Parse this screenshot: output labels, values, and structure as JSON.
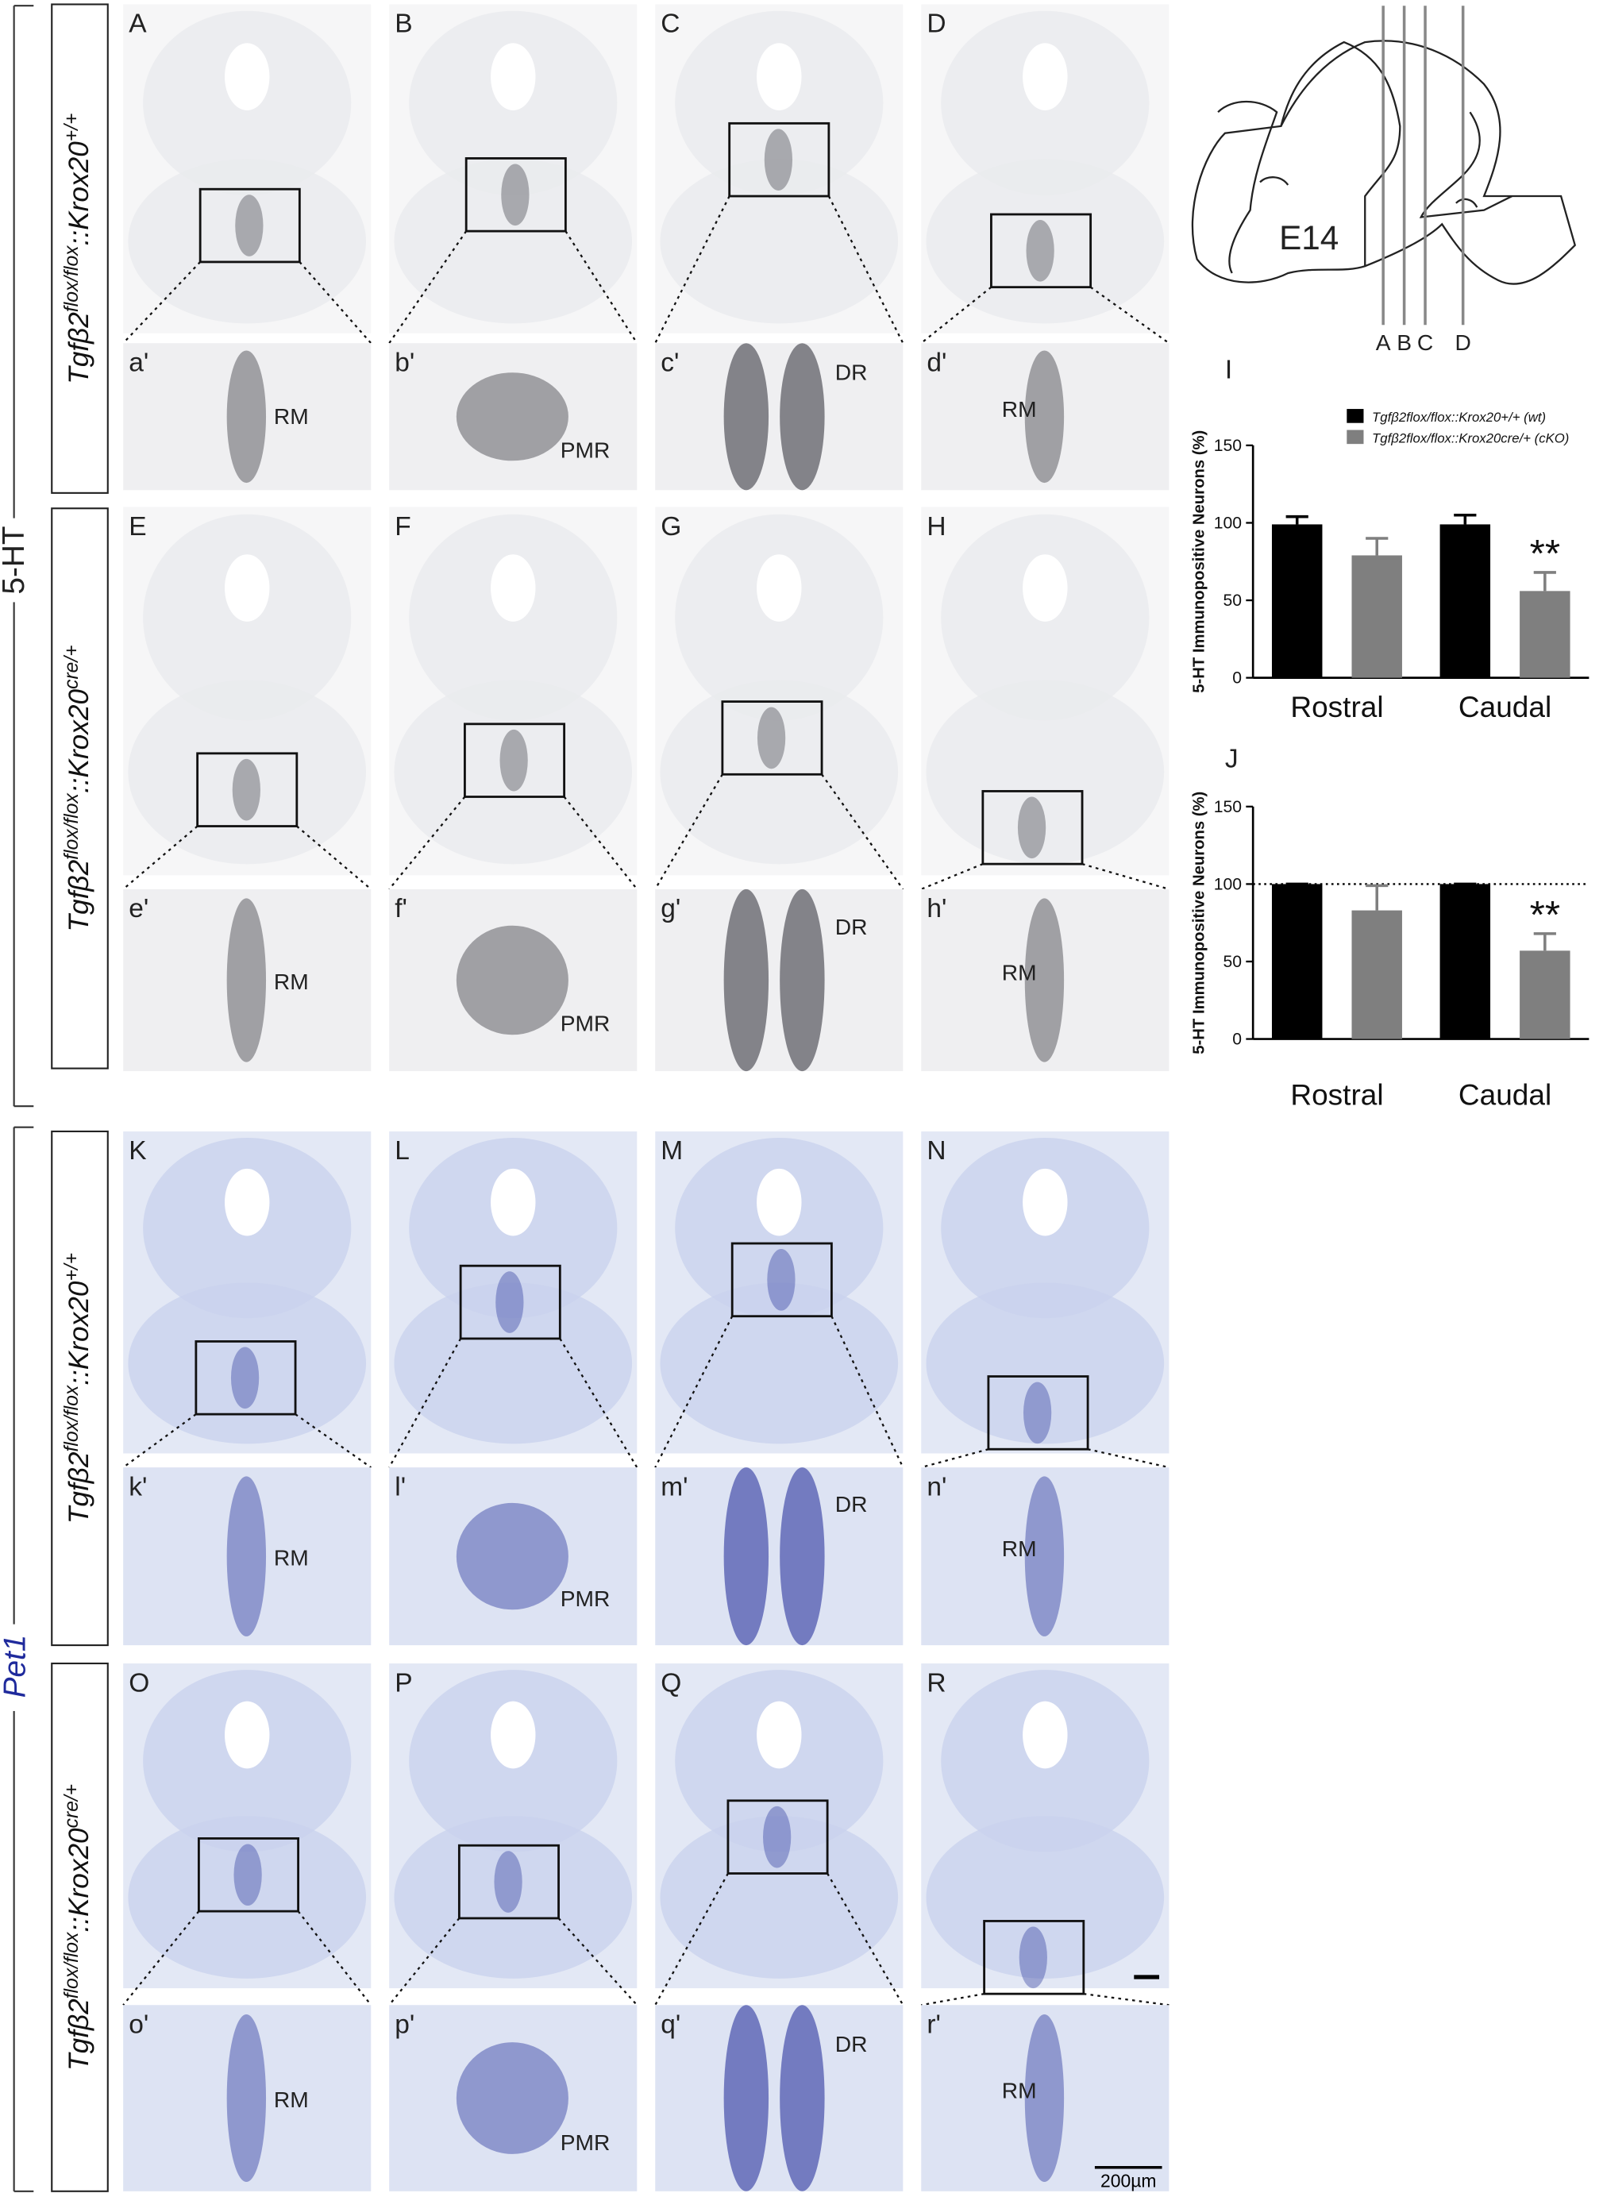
{
  "groups": [
    {
      "label": "5-HT"
    },
    {
      "label": "Pet1"
    }
  ],
  "rows": [
    {
      "label": [
        {
          "text": "Tgfβ2"
        },
        {
          "text": "flox/flox",
          "sup": true
        },
        {
          "text": "::Krox20"
        },
        {
          "text": "+/+",
          "sup": true
        }
      ]
    },
    {
      "label": [
        {
          "text": "Tgfβ2"
        },
        {
          "text": "flox/flox",
          "sup": true
        },
        {
          "text": "::Krox20"
        },
        {
          "text": "cre/+",
          "sup": true
        }
      ]
    },
    {
      "label": [
        {
          "text": "Tgfβ2"
        },
        {
          "text": "flox/flox",
          "sup": true
        },
        {
          "text": "::Krox20"
        },
        {
          "text": "+/+",
          "sup": true
        }
      ]
    },
    {
      "label": [
        {
          "text": "Tgfβ2"
        },
        {
          "text": "flox/flox",
          "sup": true
        },
        {
          "text": "::Krox20"
        },
        {
          "text": "cre/+",
          "sup": true
        }
      ]
    }
  ],
  "panels": [
    {
      "label": "A",
      "zoom_label": "a'",
      "region": "RM"
    },
    {
      "label": "B",
      "zoom_label": "b'",
      "region": "PMR"
    },
    {
      "label": "C",
      "zoom_label": "c'",
      "region": "DR"
    },
    {
      "label": "D",
      "zoom_label": "d'",
      "region": "RM"
    },
    {
      "label": "E",
      "zoom_label": "e'",
      "region": "RM"
    },
    {
      "label": "F",
      "zoom_label": "f'",
      "region": "PMR"
    },
    {
      "label": "G",
      "zoom_label": "g'",
      "region": "DR"
    },
    {
      "label": "H",
      "zoom_label": "h'",
      "region": "RM"
    },
    {
      "label": "K",
      "zoom_label": "k'",
      "region": "RM"
    },
    {
      "label": "L",
      "zoom_label": "l'",
      "region": "PMR"
    },
    {
      "label": "M",
      "zoom_label": "m'",
      "region": "DR"
    },
    {
      "label": "N",
      "zoom_label": "n'",
      "region": "RM"
    },
    {
      "label": "O",
      "zoom_label": "o'",
      "region": "RM"
    },
    {
      "label": "P",
      "zoom_label": "p'",
      "region": "PMR"
    },
    {
      "label": "Q",
      "zoom_label": "q'",
      "region": "DR"
    },
    {
      "label": "R",
      "zoom_label": "r'",
      "region": "RM"
    }
  ],
  "scale_bar": "200µm",
  "schematic": {
    "stage": "E14",
    "section_labels": [
      "A",
      "B",
      "C",
      "D"
    ]
  },
  "chart_data": [
    {
      "type": "bar",
      "panel_label": "I",
      "y_label": "5-HT Immunopositive Neurons (%)",
      "categories": [
        "Rostral",
        "Caudal"
      ],
      "series": [
        {
          "name": "Tgfβ2flox/flox::Krox20+/+ (wt)",
          "color": "#000000",
          "values": [
            99,
            99
          ],
          "errors": [
            5,
            6
          ]
        },
        {
          "name": "Tgfβ2flox/flox::Krox20cre/+ (cKO)",
          "color": "#7f7f7f",
          "values": [
            79,
            56
          ],
          "errors": [
            11,
            12
          ]
        }
      ],
      "annotation": "**",
      "ylim": [
        0,
        150
      ],
      "yticks": [
        0,
        50,
        100,
        150
      ]
    },
    {
      "type": "bar",
      "panel_label": "J",
      "y_label": "5-HT Immunopositive Neurons (%)",
      "categories": [
        "Rostral",
        "Caudal"
      ],
      "series": [
        {
          "name": "Tgfβ2flox/flox::Krox20+/+ (wt)",
          "color": "#000000",
          "values": [
            100,
            100
          ],
          "errors": [
            0,
            0
          ]
        },
        {
          "name": "Tgfβ2flox/flox::Krox20cre/+ (cKO)",
          "color": "#7f7f7f",
          "values": [
            83,
            57
          ],
          "errors": [
            16,
            11
          ]
        }
      ],
      "annotation": "**",
      "reference_line": 100,
      "ylim": [
        0,
        150
      ],
      "yticks": [
        0,
        50,
        100,
        150
      ]
    }
  ]
}
